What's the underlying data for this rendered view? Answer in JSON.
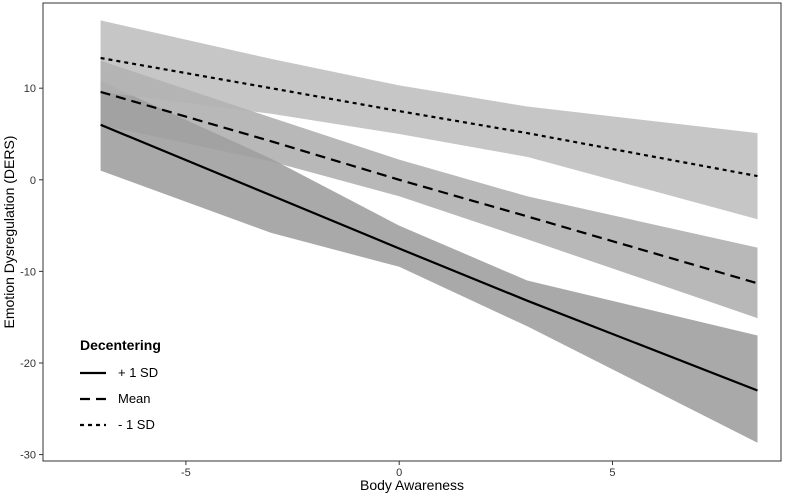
{
  "chart_data": {
    "type": "line",
    "xlabel": "Body Awareness",
    "ylabel": "Emotion Dysregulation (DERS)",
    "xlim": [
      -8.35,
      8.95
    ],
    "ylim": [
      -30.7,
      19.3
    ],
    "x_ticks": [
      -5,
      0,
      5
    ],
    "y_ticks": [
      -30,
      -20,
      -10,
      0,
      10
    ],
    "grid": false,
    "x": [
      -7,
      8.4
    ],
    "legend": {
      "title": "Decentering",
      "position": "bottom-left",
      "entries": [
        "+ 1 SD",
        "Mean",
        "- 1 SD"
      ]
    },
    "series": [
      {
        "name": "+ 1 SD",
        "line_style": "solid",
        "band_color": "#8c8c8c",
        "x": [
          -7,
          -3,
          0,
          3,
          8.4
        ],
        "y": [
          6.0,
          -1.7,
          -7.5,
          -13.2,
          -23.0
        ],
        "lower": [
          1.0,
          -5.8,
          -9.5,
          -16.0,
          -28.7
        ],
        "upper": [
          10.8,
          2.3,
          -5.0,
          -11.0,
          -17.0
        ]
      },
      {
        "name": "Mean",
        "line_style": "dashed",
        "band_color": "#a0a0a0",
        "x": [
          -7,
          -3,
          0,
          3,
          8.4
        ],
        "y": [
          9.6,
          4.2,
          0.0,
          -4.0,
          -11.3
        ],
        "lower": [
          6.0,
          2.0,
          -1.8,
          -6.5,
          -15.1
        ],
        "upper": [
          13.0,
          6.8,
          2.2,
          -1.8,
          -7.4
        ]
      },
      {
        "name": "- 1 SD",
        "line_style": "dotted",
        "band_color": "#b3b3b3",
        "x": [
          -7,
          -3,
          0,
          3,
          8.4
        ],
        "y": [
          13.3,
          10.0,
          7.5,
          5.1,
          0.4
        ],
        "lower": [
          9.6,
          7.2,
          5.0,
          2.5,
          -4.3
        ],
        "upper": [
          17.4,
          13.2,
          10.3,
          8.0,
          5.1
        ]
      }
    ]
  }
}
